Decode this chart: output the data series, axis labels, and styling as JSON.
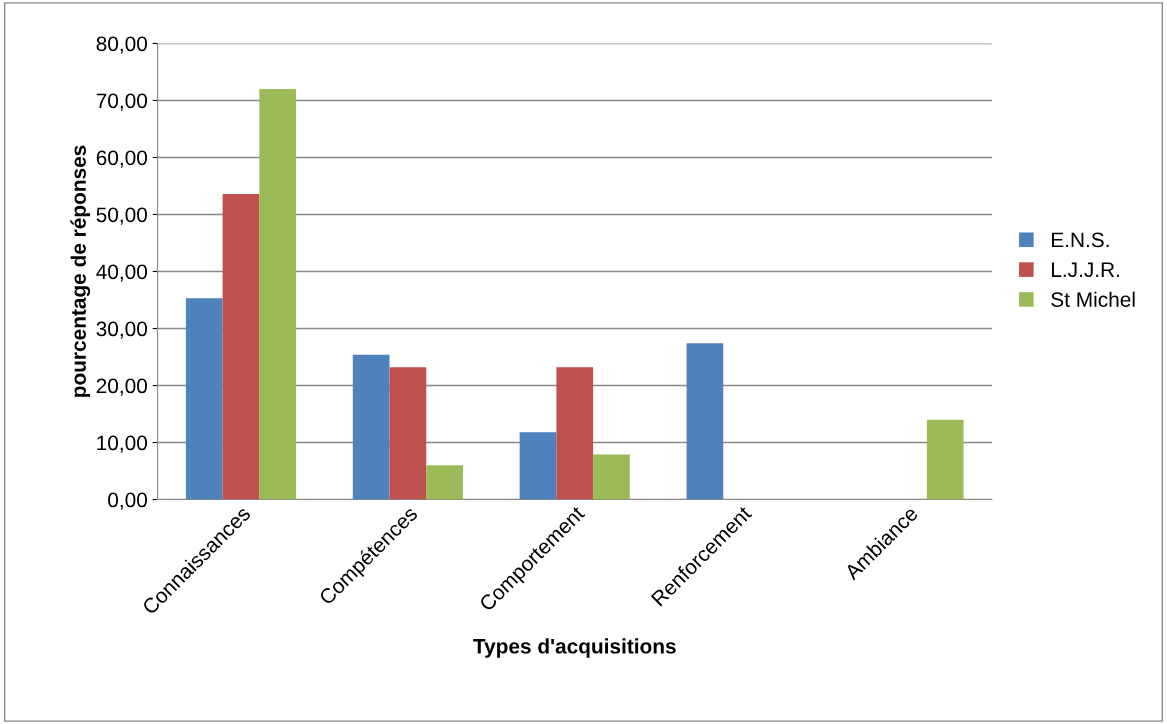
{
  "chart_data": {
    "type": "bar",
    "xlabel": "Types d'acquisitions",
    "ylabel": "pourcentage de réponses",
    "categories": [
      "Connaissances",
      "Compétences",
      "Comportement",
      "Renforcement",
      "Ambiance"
    ],
    "series": [
      {
        "name": "E.N.S.",
        "color": "#4f81bd",
        "values": [
          35.3,
          25.4,
          11.8,
          27.4,
          0
        ]
      },
      {
        "name": "L.J.J.R.",
        "color": "#c0504d",
        "values": [
          53.6,
          23.2,
          23.2,
          0,
          0
        ]
      },
      {
        "name": "St Michel",
        "color": "#9bbb59",
        "values": [
          72.0,
          6.0,
          7.9,
          0,
          14.0
        ]
      }
    ],
    "ylim": [
      0,
      80
    ],
    "yticks": [
      {
        "value": 0,
        "label": "0,00"
      },
      {
        "value": 10,
        "label": "10,00"
      },
      {
        "value": 20,
        "label": "20,00"
      },
      {
        "value": 30,
        "label": "30,00"
      },
      {
        "value": 40,
        "label": "40,00"
      },
      {
        "value": 50,
        "label": "50,00"
      },
      {
        "value": 60,
        "label": "60,00"
      },
      {
        "value": 70,
        "label": "70,00"
      },
      {
        "value": 80,
        "label": "80,00"
      }
    ],
    "grid": "y",
    "legend": "right"
  }
}
